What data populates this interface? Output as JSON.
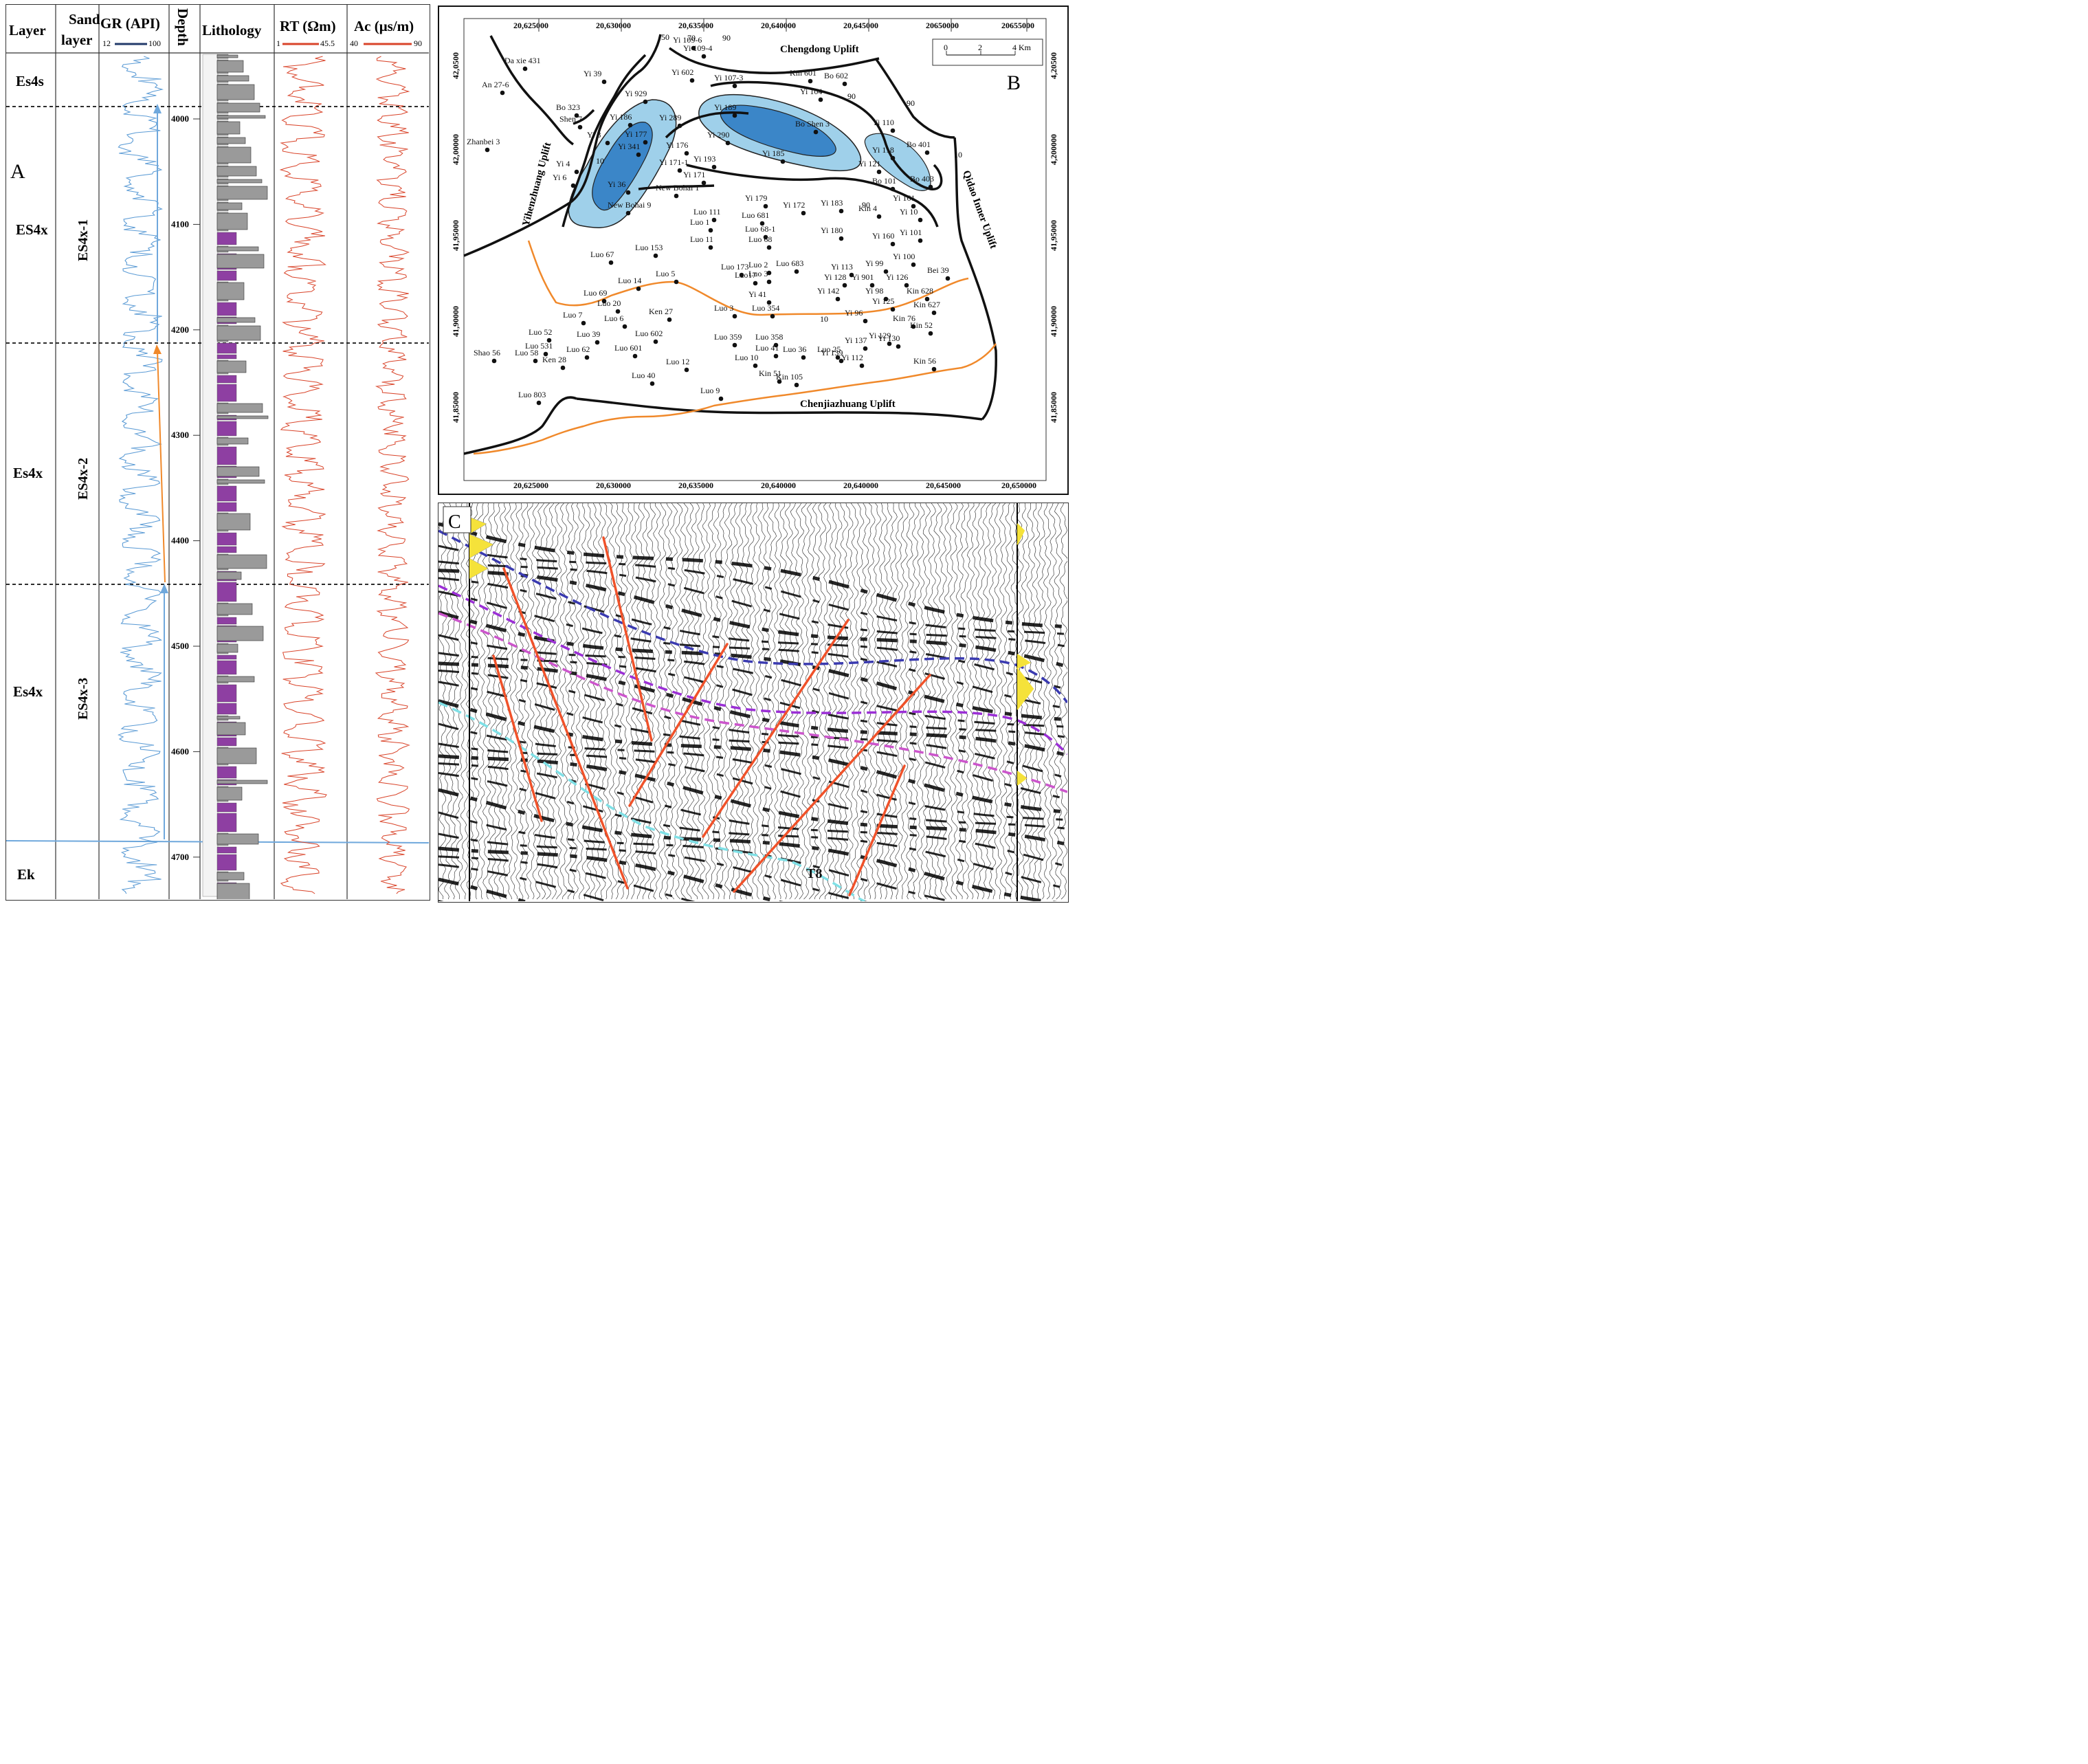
{
  "panelA": {
    "panel_label": "A",
    "headers": {
      "layer": "Layer",
      "sand_layer_line1": "Sand",
      "sand_layer_line2": "layer",
      "gr": "GR (API)",
      "gr_min": "12",
      "gr_max": "100",
      "depth": "Depth",
      "lithology": "Lithology",
      "rt": "RT (Ωm)",
      "rt_min": "1",
      "rt_max": "45.5",
      "ac": "Ac (μs/m)",
      "ac_min": "40",
      "ac_max": "90"
    },
    "layers": [
      "Es4s",
      "ES4x",
      "Es4x",
      "Es4x",
      "Ek"
    ],
    "sand_layers": [
      "ES4x-1",
      "ES4x-2",
      "ES4x-3"
    ],
    "depth_ticks": [
      "4000",
      "4100",
      "4200",
      "4300",
      "4400",
      "4500",
      "4600",
      "4700"
    ],
    "colors": {
      "gr": "#5b9bd5",
      "rt": "#d9442a",
      "ac": "#d9442a",
      "mudstone": "#8e3fa2",
      "sandstone": "#9a9a9a",
      "arrow_up": "#6fa8dc",
      "arrow_orange": "#f0892b"
    }
  },
  "panelB": {
    "panel_label": "B",
    "x_ticks_top": [
      "20,625000",
      "20,630000",
      "20,635000",
      "20,640000",
      "20,645000",
      "20650000",
      "20655000"
    ],
    "x_ticks_bottom": [
      "20,625000",
      "20,630000",
      "20,635000",
      "20,640000",
      "20,640000",
      "20,645000",
      "20,650000"
    ],
    "y_ticks_left": [
      "42,0500",
      "42,00000",
      "41,95000",
      "41,90000",
      "41,85000"
    ],
    "y_ticks_right": [
      "4,20500",
      "4,200000",
      "41,95000",
      "41,90000",
      "41,85000"
    ],
    "scale_bar": {
      "labels": [
        "0",
        "2",
        "4 Km"
      ]
    },
    "uplifts": [
      "Chengdong Uplift",
      "Yihenzhuang Uplift",
      "Qidao Inner Uplift",
      "Chenjiazhuang Uplift"
    ],
    "contour_labels": [
      "50",
      "70",
      "90",
      "10",
      "90",
      "90",
      "10",
      "90",
      "10"
    ],
    "wells": [
      "Da xie 431",
      "Yi 39",
      "An 27-6",
      "Yi 109-6",
      "Yi 109-4",
      "Yi 602",
      "Yi 107-3",
      "Kin 601",
      "Bo 602",
      "Yi 104",
      "Yi 929",
      "Bo 323",
      "Shen 7",
      "Yi 186",
      "Yi 189",
      "Yi 289",
      "Bo Shen 3",
      "Yi 110",
      "Zhanbei 3",
      "Yi 8",
      "Yi 177",
      "Yi 290",
      "Yi 341",
      "Yi 176",
      "Yi 185",
      "Yi 118",
      "Bo 401",
      "Yi 4",
      "Yi 171-1",
      "Yi 193",
      "Yi 121",
      "Yi 6",
      "Yi 36",
      "Yi 171",
      "New Bohai 1",
      "Bo 101",
      "Bo 403",
      "Yi 179",
      "Yi 172",
      "Yi 183",
      "Kin 4",
      "Yi 161",
      "Luo 111",
      "Luo 681",
      "New Bohai 9",
      "Luo 1",
      "Luo 68-1",
      "Yi 180",
      "Yi 10",
      "Luo 11",
      "Luo 68",
      "Yi 160",
      "Yi 101",
      "Luo 67",
      "Luo 153",
      "Luo 2",
      "Luo 683",
      "Luo 173",
      "Yi 113",
      "Yi 99",
      "Yi 100",
      "Luo 5",
      "Luo17",
      "Luo 3",
      "Yi 128",
      "Yi 901",
      "Yi 126",
      "Bei 39",
      "Luo 14",
      "Luo 69",
      "Yi 41",
      "Yi 142",
      "Yi 98",
      "Kin 628",
      "Luo 20",
      "Luo 3",
      "Luo 354",
      "Yi 125",
      "Kin 627",
      "Ken 27",
      "Yi 96",
      "Luo 7",
      "Luo 6",
      "Kin 76",
      "Kin 52",
      "Luo 52",
      "Luo 39",
      "Luo 602",
      "Luo 358",
      "Yi 129",
      "Luo 359",
      "Yi 137",
      "Yi 130",
      "Luo 531",
      "Luo 25",
      "Shao 56",
      "Luo 58",
      "Luo 62",
      "Luo 601",
      "Luo 41",
      "Luo 36",
      "Yi 139",
      "Luo 10",
      "Yi 112",
      "Luo 12",
      "Kin 56",
      "Ken 28",
      "Kin 51",
      "Kin 105",
      "Luo 40",
      "Luo 9",
      "Luo 803"
    ]
  },
  "panelC": {
    "panel_label": "C",
    "horizon_label": "T8"
  }
}
